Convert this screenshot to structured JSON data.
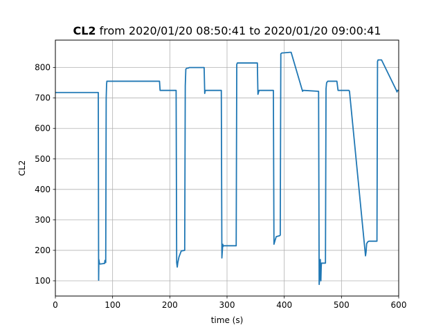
{
  "chart_data": {
    "type": "line",
    "title_bold": "CL2",
    "title_rest": " from 2020/01/20 08:50:41 to 2020/01/20 09:00:41",
    "xlabel": "time (s)",
    "ylabel": "CL2",
    "xlim": [
      0,
      600
    ],
    "ylim": [
      50,
      890
    ],
    "x_ticks": [
      0,
      100,
      200,
      300,
      400,
      500,
      600
    ],
    "y_ticks": [
      100,
      200,
      300,
      400,
      500,
      600,
      700,
      800
    ],
    "grid": true,
    "line_color": "#1f77b4",
    "series": [
      {
        "x": [
          0,
          74,
          75,
          75.6,
          76,
          77,
          78,
          86,
          86.6,
          87,
          88,
          88.8,
          89.5,
          90,
          182,
          183,
          211,
          212,
          213,
          214,
          216,
          218,
          220,
          226,
          227,
          228,
          230,
          232,
          234,
          260,
          261,
          262,
          263,
          290,
          291,
          292,
          292.6,
          293,
          294,
          316,
          317,
          318,
          352,
          353,
          354,
          356,
          380,
          381,
          382,
          384,
          386,
          392,
          393,
          394,
          396,
          398,
          410,
          412,
          432,
          433,
          434,
          460,
          461,
          462,
          463,
          464,
          464.6,
          465,
          466,
          472,
          473,
          474,
          476,
          478,
          492,
          494,
          512,
          513,
          514,
          542,
          543,
          544,
          546,
          548,
          562,
          563,
          564,
          566,
          570,
          596,
          597,
          598,
          600
        ],
        "y": [
          718,
          718,
          718,
          102,
          170,
          157,
          155,
          157,
          167,
          162,
          160,
          700,
          745,
          755,
          755,
          725,
          725,
          160,
          145,
          160,
          178,
          188,
          198,
          200,
          740,
          795,
          798,
          798,
          800,
          800,
          715,
          725,
          725,
          725,
          175,
          205,
          220,
          213,
          215,
          215,
          810,
          815,
          815,
          815,
          712,
          725,
          725,
          725,
          220,
          233,
          245,
          248,
          250,
          845,
          848,
          848,
          850,
          850,
          722,
          725,
          725,
          722,
          88,
          110,
          170,
          100,
          145,
          158,
          158,
          158,
          730,
          750,
          755,
          755,
          755,
          725,
          725,
          725,
          722,
          182,
          195,
          222,
          228,
          230,
          230,
          820,
          825,
          825,
          825,
          725,
          720,
          725,
          725
        ]
      }
    ]
  }
}
